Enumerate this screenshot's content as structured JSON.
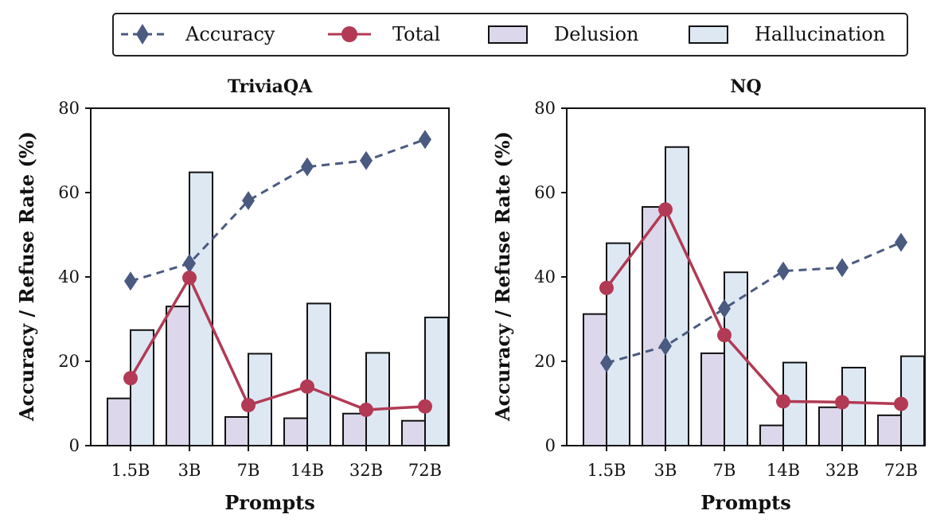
{
  "legend": [
    {
      "label": "Accuracy",
      "kind": "line-diamond-dashed",
      "color": "#4a5a80"
    },
    {
      "label": "Total",
      "kind": "line-circle",
      "color": "#b23a54"
    },
    {
      "label": "Delusion",
      "kind": "bar",
      "color": "#dcd7ea"
    },
    {
      "label": "Hallucination",
      "kind": "bar",
      "color": "#dde8f3"
    }
  ],
  "chart_data": [
    {
      "type": "bar",
      "title": "TriviaQA",
      "xlabel": "Prompts",
      "ylabel": "Accuracy / Refuse Rate (%)",
      "ylim": [
        0,
        80
      ],
      "yticks": [
        0,
        20,
        40,
        60,
        80
      ],
      "categories": [
        "1.5B",
        "3B",
        "7B",
        "14B",
        "32B",
        "72B"
      ],
      "series": [
        {
          "name": "Delusion",
          "type": "bar",
          "values": [
            11.2,
            33,
            6.8,
            6.5,
            7.6,
            5.9
          ]
        },
        {
          "name": "Hallucination",
          "type": "bar",
          "values": [
            27.4,
            64.8,
            21.8,
            33.7,
            22,
            30.4
          ]
        },
        {
          "name": "Accuracy",
          "type": "line",
          "values": [
            39,
            43.2,
            58.1,
            66.1,
            67.6,
            72.6
          ]
        },
        {
          "name": "Total",
          "type": "line",
          "values": [
            16,
            39.8,
            9.6,
            14,
            8.5,
            9.3
          ]
        }
      ]
    },
    {
      "type": "bar",
      "title": "NQ",
      "xlabel": "Prompts",
      "ylabel": "Accuracy / Refuse Rate (%)",
      "ylim": [
        0,
        80
      ],
      "yticks": [
        0,
        20,
        40,
        60,
        80
      ],
      "categories": [
        "1.5B",
        "3B",
        "7B",
        "14B",
        "32B",
        "72B"
      ],
      "series": [
        {
          "name": "Delusion",
          "type": "bar",
          "values": [
            31.2,
            56.6,
            21.9,
            4.8,
            9.1,
            7.2
          ]
        },
        {
          "name": "Hallucination",
          "type": "bar",
          "values": [
            48,
            70.8,
            41.1,
            19.7,
            18.5,
            21.2
          ]
        },
        {
          "name": "Accuracy",
          "type": "line",
          "values": [
            19.6,
            23.6,
            32.5,
            41.4,
            42.2,
            48.2
          ]
        },
        {
          "name": "Total",
          "type": "line",
          "values": [
            37.4,
            56,
            26.2,
            10.5,
            10.3,
            9.9
          ]
        }
      ]
    }
  ]
}
